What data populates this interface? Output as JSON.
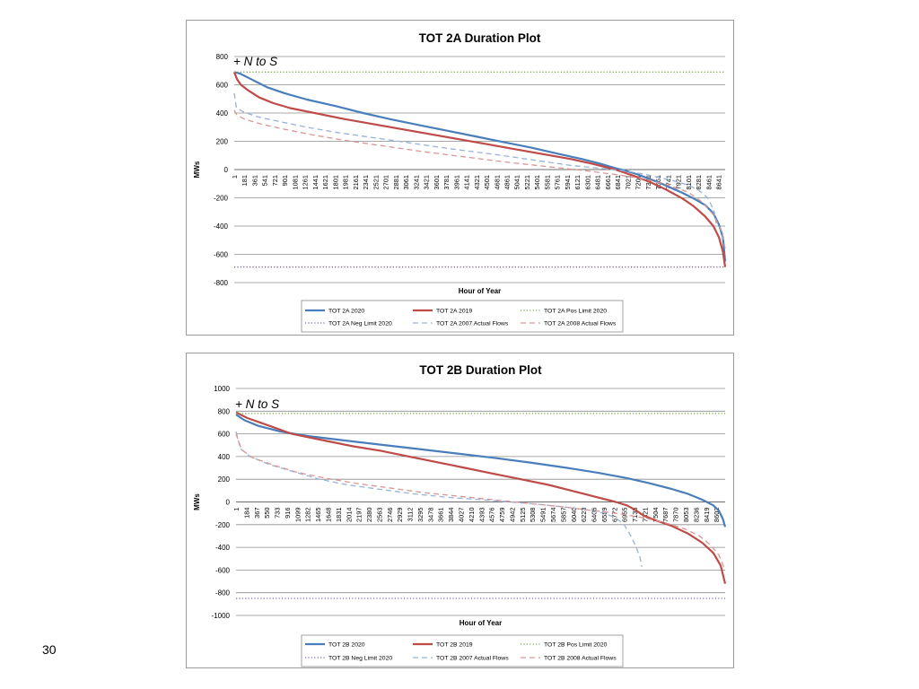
{
  "slide_number": "30",
  "chart_data": [
    {
      "type": "line",
      "title": "TOT 2A Duration Plot",
      "annotation": "+ N to S",
      "xlabel": "Hour of Year",
      "ylabel": "MWs",
      "ylim": [
        -800,
        800
      ],
      "yticks": [
        -800,
        -600,
        -400,
        -200,
        0,
        200,
        400,
        600,
        800
      ],
      "x_tick_labels": [
        "1",
        "181",
        "361",
        "541",
        "721",
        "901",
        "1081",
        "1261",
        "1441",
        "1621",
        "1801",
        "1981",
        "2161",
        "2341",
        "2521",
        "2701",
        "2881",
        "3061",
        "3241",
        "3421",
        "3601",
        "3781",
        "3961",
        "4141",
        "4321",
        "4501",
        "4681",
        "4861",
        "5041",
        "5221",
        "5401",
        "5581",
        "5761",
        "5941",
        "6121",
        "6301",
        "6481",
        "6661",
        "6841",
        "7021",
        "7201",
        "7381",
        "7561",
        "7741",
        "7921",
        "8101",
        "8281",
        "8461",
        "8641"
      ],
      "xlim": [
        1,
        8760
      ],
      "grid": true,
      "legend_position": "bottom",
      "series": [
        {
          "name": "TOT 2A 2020",
          "color": "#4a7ebb",
          "style": "solid",
          "x": [
            1,
            100,
            300,
            600,
            900,
            1300,
            1800,
            2300,
            2800,
            3300,
            3800,
            4300,
            4800,
            5300,
            5800,
            6200,
            6500,
            6800,
            7000,
            7200,
            7400,
            7600,
            7800,
            8000,
            8200,
            8400,
            8550,
            8650,
            8720,
            8760
          ],
          "y": [
            690,
            680,
            640,
            580,
            540,
            495,
            450,
            400,
            355,
            315,
            275,
            235,
            195,
            155,
            110,
            75,
            45,
            10,
            -10,
            -35,
            -65,
            -95,
            -130,
            -165,
            -205,
            -250,
            -310,
            -390,
            -480,
            -650
          ]
        },
        {
          "name": "TOT 2A 2019",
          "color": "#be4b48",
          "style": "solid",
          "x": [
            1,
            50,
            120,
            250,
            450,
            700,
            1000,
            1500,
            2000,
            2500,
            3000,
            3500,
            4000,
            4500,
            5000,
            5500,
            6000,
            6400,
            6800,
            7100,
            7400,
            7700,
            8000,
            8200,
            8400,
            8550,
            8650,
            8720,
            8760
          ],
          "y": [
            690,
            640,
            600,
            560,
            510,
            470,
            435,
            395,
            355,
            320,
            285,
            250,
            215,
            180,
            145,
            110,
            75,
            40,
            0,
            -40,
            -85,
            -140,
            -205,
            -260,
            -330,
            -400,
            -480,
            -580,
            -690
          ]
        },
        {
          "name": "TOT 2A Pos Limit 2020",
          "color": "#7cad4b",
          "style": "dotted",
          "x": [
            1,
            8760
          ],
          "y": [
            690,
            690
          ]
        },
        {
          "name": "TOT 2A Neg Limit 2020",
          "color": "#8064a2",
          "style": "dotted",
          "x": [
            1,
            8760
          ],
          "y": [
            -690,
            -690
          ]
        },
        {
          "name": "TOT 2A 2007 Actual Flows",
          "color": "#95b3d7",
          "style": "dashed",
          "x": [
            1,
            40,
            150,
            400,
            800,
            1300,
            1800,
            2500,
            3200,
            3900,
            4600,
            5300,
            6000,
            6500,
            7000,
            7400,
            7800,
            8100,
            8300,
            8450,
            8560,
            8600
          ],
          "y": [
            540,
            440,
            410,
            375,
            340,
            300,
            265,
            225,
            185,
            145,
            110,
            70,
            30,
            10,
            -10,
            -40,
            -75,
            -110,
            -150,
            -200,
            -290,
            -380
          ]
        },
        {
          "name": "TOT 2A 2008 Actual Flows",
          "color": "#d99694",
          "style": "dashed",
          "x": [
            1,
            50,
            200,
            500,
            900,
            1400,
            2000,
            2700,
            3400,
            4100,
            4800,
            5500,
            6200,
            6800,
            7300,
            7700,
            8100,
            8350,
            8550,
            8700,
            8760
          ],
          "y": [
            420,
            385,
            355,
            320,
            285,
            245,
            205,
            165,
            125,
            90,
            55,
            25,
            -5,
            -35,
            -65,
            -105,
            -160,
            -230,
            -320,
            -440,
            -560
          ]
        }
      ]
    },
    {
      "type": "line",
      "title": "TOT 2B Duration Plot",
      "annotation": "+ N to S",
      "xlabel": "Hour of Year",
      "ylabel": "MWs",
      "ylim": [
        -1000,
        1000
      ],
      "yticks": [
        -1000,
        -800,
        -600,
        -400,
        -200,
        0,
        200,
        400,
        600,
        800,
        1000
      ],
      "x_tick_labels": [
        "1",
        "184",
        "367",
        "550",
        "733",
        "916",
        "1099",
        "1282",
        "1465",
        "1648",
        "1831",
        "2014",
        "2197",
        "2380",
        "2563",
        "2746",
        "2929",
        "3112",
        "3295",
        "3478",
        "3661",
        "3844",
        "4027",
        "4210",
        "4393",
        "4576",
        "4759",
        "4942",
        "5125",
        "5308",
        "5491",
        "5674",
        "5857",
        "6040",
        "6223",
        "6406",
        "6589",
        "6772",
        "6955",
        "7138",
        "7321",
        "7504",
        "7687",
        "7870",
        "8053",
        "8236",
        "8419",
        "8602"
      ],
      "xlim": [
        1,
        8760
      ],
      "grid": true,
      "legend_position": "bottom",
      "series": [
        {
          "name": "TOT 2B 2020",
          "color": "#4a7ebb",
          "style": "solid",
          "x": [
            1,
            150,
            400,
            800,
            1300,
            1800,
            2500,
            3200,
            3900,
            4600,
            5300,
            6000,
            6500,
            7000,
            7400,
            7800,
            8100,
            8350,
            8550,
            8650,
            8720,
            8760
          ],
          "y": [
            770,
            720,
            670,
            620,
            580,
            550,
            510,
            470,
            430,
            390,
            345,
            295,
            255,
            210,
            165,
            115,
            70,
            20,
            -30,
            -80,
            -150,
            -220
          ]
        },
        {
          "name": "TOT 2B 2019",
          "color": "#be4b48",
          "style": "solid",
          "x": [
            1,
            200,
            600,
            1000,
            1300,
            1700,
            2100,
            2600,
            3100,
            3600,
            4100,
            4600,
            5100,
            5600,
            6000,
            6400,
            6800,
            7000,
            7150,
            7300,
            7500,
            7800,
            8100,
            8350,
            8550,
            8680,
            8760
          ],
          "y": [
            790,
            740,
            670,
            600,
            570,
            530,
            490,
            450,
            400,
            350,
            300,
            250,
            200,
            150,
            100,
            50,
            0,
            -30,
            -70,
            -120,
            -160,
            -210,
            -280,
            -360,
            -450,
            -560,
            -720
          ]
        },
        {
          "name": "TOT 2B Pos  Limit 2020",
          "color": "#7cad4b",
          "style": "dotted",
          "x": [
            1,
            8760
          ],
          "y": [
            780,
            780
          ]
        },
        {
          "name": "TOT 2B Neg Limit 2020",
          "color": "#8064a2",
          "style": "dotted",
          "x": [
            1,
            8760
          ],
          "y": [
            -850,
            -850
          ]
        },
        {
          "name": "TOT 2B 2007 Actual Flows",
          "color": "#95b3d7",
          "style": "dashed",
          "x": [
            1,
            80,
            250,
            600,
            1000,
            1500,
            2000,
            2600,
            3200,
            3800,
            4400,
            4900,
            5400,
            5900,
            6300,
            6600,
            6800,
            6950,
            7050,
            7150,
            7230,
            7270
          ],
          "y": [
            620,
            470,
            400,
            330,
            270,
            200,
            150,
            110,
            70,
            40,
            20,
            0,
            -20,
            -45,
            -70,
            -100,
            -140,
            -200,
            -280,
            -380,
            -480,
            -570
          ]
        },
        {
          "name": "TOT 2B 2008 Actual Flows",
          "color": "#d99694",
          "style": "dashed",
          "x": [
            1,
            100,
            300,
            700,
            1100,
            1600,
            2200,
            2800,
            3400,
            4000,
            4600,
            5200,
            5800,
            6300,
            6800,
            7300,
            7700,
            8050,
            8300,
            8500,
            8650,
            8760
          ],
          "y": [
            600,
            460,
            390,
            320,
            260,
            210,
            160,
            120,
            80,
            50,
            20,
            -10,
            -40,
            -70,
            -100,
            -140,
            -185,
            -240,
            -300,
            -380,
            -470,
            -600
          ]
        }
      ]
    }
  ]
}
